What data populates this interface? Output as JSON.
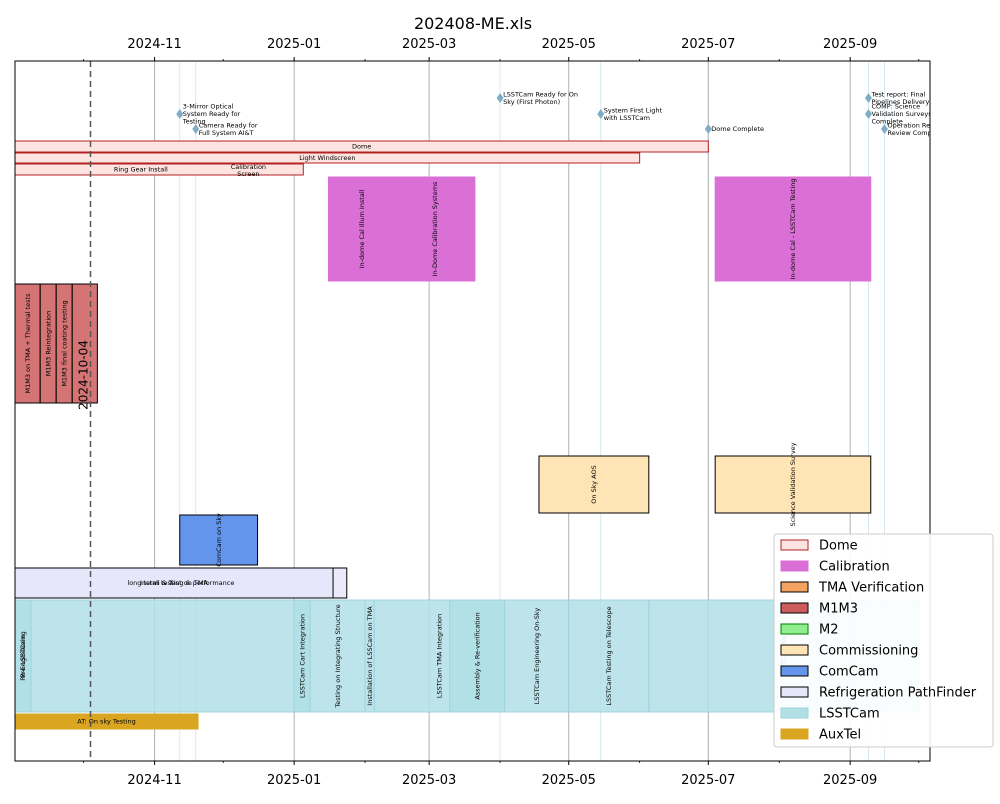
{
  "chart_data": {
    "type": "gantt",
    "title": "202408-ME.xls",
    "xlabel": "",
    "ylabel": "",
    "x_axis": {
      "range": [
        "2024-09-01",
        "2025-10-16"
      ],
      "tick_labels": [
        "2024-11",
        "2025-01",
        "2025-03",
        "2025-05",
        "2025-07",
        "2025-09"
      ],
      "tick_dates": [
        "2024-11-01",
        "2025-01-01",
        "2025-03-01",
        "2025-05-01",
        "2025-07-01",
        "2025-09-01"
      ],
      "minor_ticks": [
        "2024-10-01",
        "2024-12-01",
        "2025-02-01",
        "2025-04-01",
        "2025-06-01",
        "2025-08-01",
        "2025-10-01"
      ],
      "labels_top": true,
      "labels_bottom": true,
      "grid": "vertical"
    },
    "current_date": {
      "date": "2024-10-04",
      "label": "2024-10-04"
    },
    "milestone_lines": [
      "2024-11-12",
      "2024-11-19",
      "2025-04-01",
      "2025-05-15",
      "2025-07-01",
      "2025-09-09",
      "2025-09-16"
    ],
    "milestones": [
      {
        "date": "2024-11-12",
        "lines": [
          "3-Mirror Optical",
          "System Ready for",
          "Testing"
        ]
      },
      {
        "date": "2024-11-19",
        "lines": [
          "Camera Ready for",
          "Full System AI&T"
        ]
      },
      {
        "date": "2025-04-01",
        "lines": [
          "LSSTCam Ready for On",
          "Sky (First Photon)"
        ]
      },
      {
        "date": "2025-05-15",
        "lines": [
          "System First Light",
          "with LSSTCam"
        ]
      },
      {
        "date": "2025-07-01",
        "lines": [
          "Dome Complete"
        ]
      },
      {
        "date": "2025-09-09",
        "lines": [
          "Test report: Final",
          "Pipelines Delivery"
        ]
      },
      {
        "date": "2025-09-09",
        "lines": [
          "COMP: Science",
          "Validation Surveys",
          "Complete"
        ]
      },
      {
        "date": "2025-09-16",
        "lines": [
          "Operation Readiness",
          "Review Complete"
        ]
      }
    ],
    "bars": [
      {
        "label": "Dome",
        "group": "Dome",
        "start": "2024-09-01",
        "end": "2025-07-01",
        "lane": "dome-1",
        "text": "horizontal"
      },
      {
        "label": "Light Windscreen",
        "group": "Dome",
        "start": "2024-09-01",
        "end": "2025-06-01",
        "lane": "dome-2",
        "text": "horizontal"
      },
      {
        "label": "Ring Gear Install",
        "group": "Dome",
        "start": "2024-09-01",
        "end": "2024-12-20",
        "lane": "dome-3",
        "text": "horizontal"
      },
      {
        "label": "Calibration Screen",
        "group": "Dome",
        "start": "2024-09-01",
        "end": "2025-01-05",
        "lane": "dome-3",
        "text": "none"
      },
      {
        "label": "In-dome Cal Illum Install",
        "group": "Calibration",
        "start": "2025-01-16",
        "end": "2025-02-14",
        "lane": "calibration",
        "text": "vertical"
      },
      {
        "label": "In-Dome Calibration Systems",
        "group": "Calibration",
        "start": "2025-02-14",
        "end": "2025-03-21",
        "lane": "calibration",
        "text": "vertical"
      },
      {
        "label": "In-dome Cal - LSSTCam Testing",
        "group": "Calibration",
        "start": "2025-07-04",
        "end": "2025-09-10",
        "lane": "calibration",
        "text": "vertical"
      },
      {
        "label": "M1M3 on TMA + Thermal tests",
        "group": "M1M3",
        "start": "2024-09-01",
        "end": "2024-09-12",
        "lane": "m1m3",
        "text": "vertical"
      },
      {
        "label": "M1M3 Reintegration",
        "group": "M1M3",
        "start": "2024-09-12",
        "end": "2024-09-19",
        "lane": "m1m3",
        "text": "vertical"
      },
      {
        "label": "M1M3 final coating testing",
        "group": "M1M3",
        "start": "2024-09-19",
        "end": "2024-09-26",
        "lane": "m1m3",
        "text": "vertical"
      },
      {
        "label": "",
        "group": "M1M3",
        "start": "2024-09-26",
        "end": "2024-10-07",
        "lane": "m1m3",
        "text": "none"
      },
      {
        "label": "On Sky AOS",
        "group": "Commissioning",
        "start": "2025-04-18",
        "end": "2025-06-05",
        "lane": "commissioning",
        "text": "vertical"
      },
      {
        "label": "Science Validation Survey",
        "group": "Commissioning",
        "start": "2025-07-04",
        "end": "2025-09-10",
        "lane": "commissioning",
        "text": "vertical"
      },
      {
        "label": "ComCam on Sky",
        "group": "ComCam",
        "start": "2024-11-12",
        "end": "2024-12-16",
        "lane": "comcam",
        "text": "vertical"
      },
      {
        "label": "long term testing & performance",
        "group": "Refrigeration PathFinder",
        "start": "2024-09-01",
        "end": "2025-01-24",
        "lane": "refrig",
        "text": "horizontal"
      },
      {
        "label": "Install & Test on TMA",
        "group": "Refrigeration PathFinder",
        "start": "2024-09-01",
        "end": "2025-01-18",
        "lane": "refrig",
        "text": "horizontal"
      },
      {
        "label": "Pre-LSSTCam",
        "group": "LSSTCam",
        "start": "2024-09-01",
        "end": "2024-09-08",
        "lane": "lsstcam",
        "text": "vertical"
      },
      {
        "label": "Re-Engineering",
        "group": "LSSTCam",
        "start": "2024-09-01",
        "end": "2024-09-08",
        "lane": "lsstcam",
        "text": "vertical"
      },
      {
        "label": "",
        "group": "LSSTCam",
        "start": "2024-09-08",
        "end": "2025-01-08",
        "lane": "lsstcam",
        "text": "none"
      },
      {
        "label": "LSSTCam Cart Integration",
        "group": "LSSTCam",
        "start": "2025-01-01",
        "end": "2025-01-08",
        "lane": "lsstcam",
        "text": "vertical"
      },
      {
        "label": "Testing on Integrating Structure",
        "group": "LSSTCam",
        "start": "2025-01-08",
        "end": "2025-02-01",
        "lane": "lsstcam",
        "text": "vertical"
      },
      {
        "label": "Installation of LSSCam on TMA",
        "group": "LSSTCam",
        "start": "2025-02-01",
        "end": "2025-02-05",
        "lane": "lsstcam",
        "text": "vertical"
      },
      {
        "label": "LSSTCam TMA Integration",
        "group": "LSSTCam",
        "start": "2025-02-05",
        "end": "2025-04-03",
        "lane": "lsstcam",
        "text": "vertical"
      },
      {
        "label": "Assembly & Re-verification",
        "group": "LSSTCam",
        "start": "2025-03-10",
        "end": "2025-04-03",
        "lane": "lsstcam",
        "text": "vertical"
      },
      {
        "label": "LSSTCam Engineering On-Sky",
        "group": "LSSTCam",
        "start": "2025-04-03",
        "end": "2025-05-01",
        "lane": "lsstcam",
        "text": "vertical"
      },
      {
        "label": "LSSTCam Testing on Telescope",
        "group": "LSSTCam",
        "start": "2025-05-01",
        "end": "2025-06-05",
        "lane": "lsstcam",
        "text": "vertical"
      },
      {
        "label": "LSSTCam SV",
        "group": "LSSTCam",
        "start": "2025-06-05",
        "end": "2025-10-01",
        "lane": "lsstcam",
        "text": "vertical"
      },
      {
        "label": "AT: On sky Testing",
        "group": "AuxTel",
        "start": "2024-09-01",
        "end": "2024-11-20",
        "lane": "auxtel",
        "text": "horizontal"
      }
    ],
    "legend": {
      "position": "lower right",
      "entries": [
        {
          "name": "Dome",
          "fill": "#fde4e1",
          "stroke": "#b22222"
        },
        {
          "name": "Calibration",
          "fill": "#da70d6",
          "stroke": "#da70d6"
        },
        {
          "name": "TMA Verification",
          "fill": "#f4a460",
          "stroke": "#000000"
        },
        {
          "name": "M1M3",
          "fill": "#cd5c5c",
          "stroke": "#000000"
        },
        {
          "name": "M2",
          "fill": "#90ee90",
          "stroke": "#008000"
        },
        {
          "name": "Commissioning",
          "fill": "#ffe4b5",
          "stroke": "#000000"
        },
        {
          "name": "ComCam",
          "fill": "#6495ed",
          "stroke": "#000000"
        },
        {
          "name": "Refrigeration PathFinder",
          "fill": "#e6e6fa",
          "stroke": "#000000"
        },
        {
          "name": "LSSTCam",
          "fill": "#b0dfe6",
          "stroke": "#9fd3df"
        },
        {
          "name": "AuxTel",
          "fill": "#daa520",
          "stroke": "#daa520"
        }
      ]
    }
  }
}
